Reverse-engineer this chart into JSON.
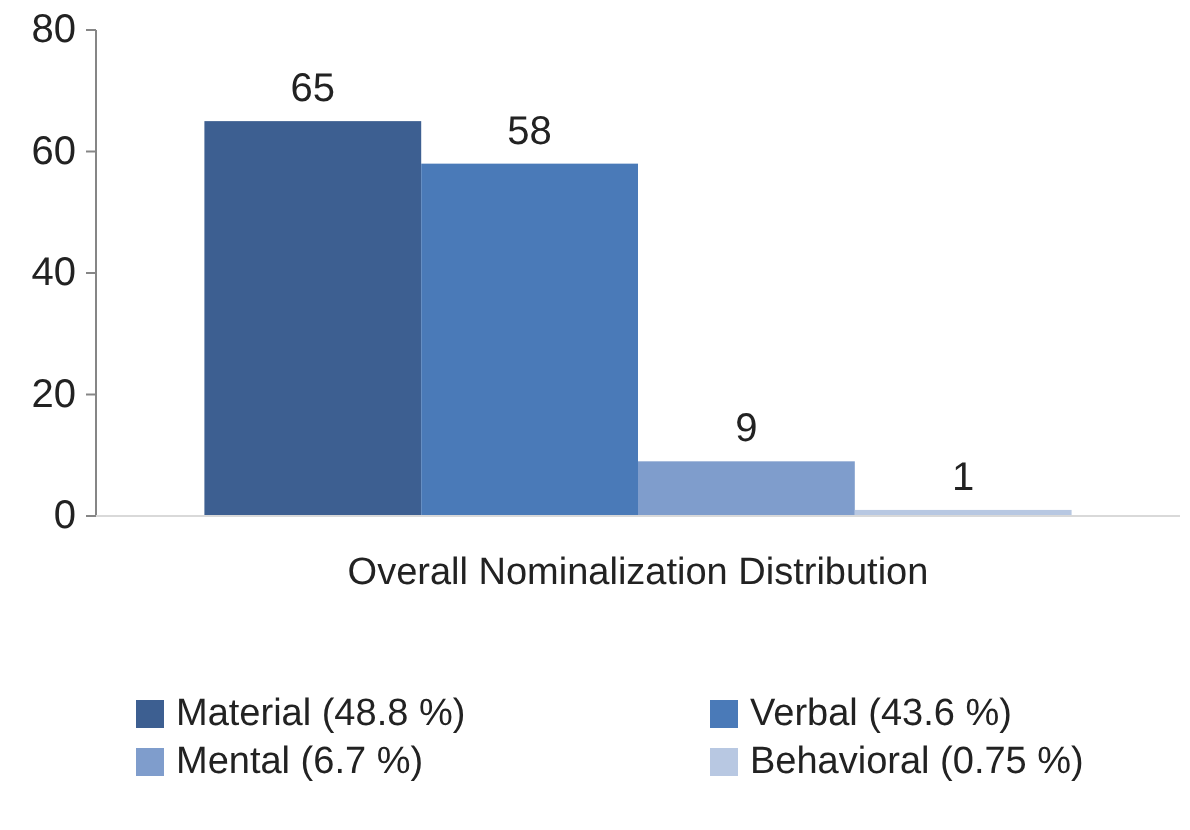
{
  "chart_data": {
    "type": "bar",
    "categories": [
      "Overall Nominalization Distribution"
    ],
    "series": [
      {
        "name": "Material (48.8 %)",
        "color": "#3d5f91",
        "values": [
          65
        ]
      },
      {
        "name": "Verbal (43.6 %)",
        "color": "#4a7ab8",
        "values": [
          58
        ]
      },
      {
        "name": "Mental (6.7 %)",
        "color": "#7f9dcc",
        "values": [
          9
        ]
      },
      {
        "name": "Behavioral (0.75 %)",
        "color": "#b8c8e2",
        "values": [
          1
        ]
      }
    ],
    "ylim": [
      0,
      80
    ],
    "yticks": [
      0,
      20,
      40,
      60,
      80
    ],
    "data_labels": true,
    "legend": "bottom",
    "grid": false
  }
}
